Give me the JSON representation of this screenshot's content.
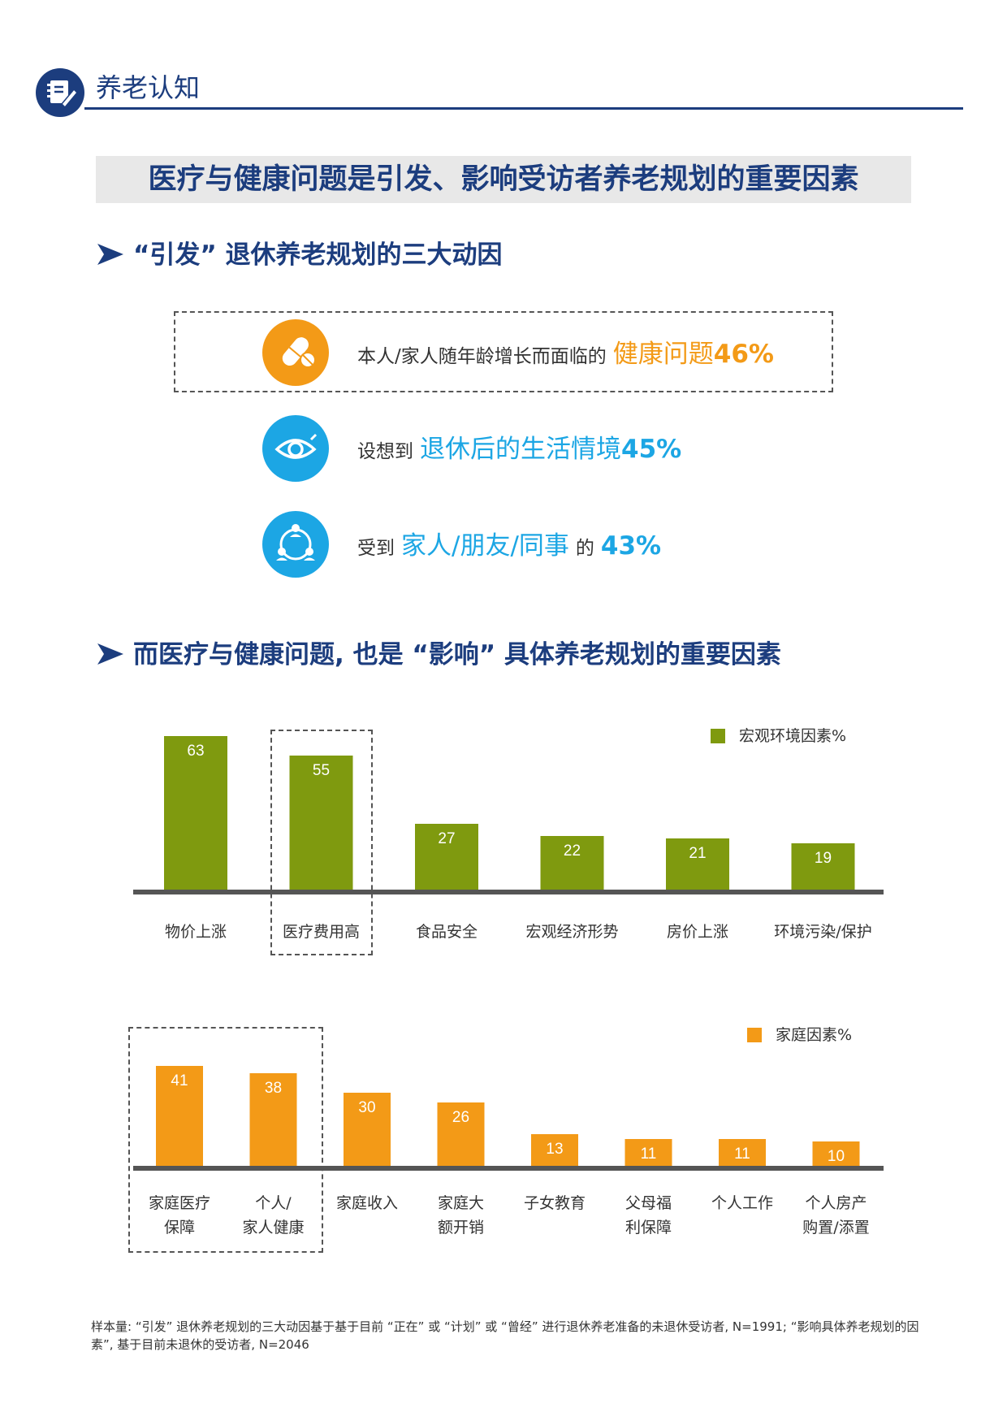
{
  "header": {
    "title": "养老认知",
    "icon": "notebook-pen-icon"
  },
  "banner": {
    "title": "医疗与健康问题是引发、影响受访者养老规划的重要因素"
  },
  "section1": {
    "title": "“引发” 退休养老规划的三大动因",
    "items": [
      {
        "icon": "pills-icon",
        "color": "#f39a17",
        "prefix": "本人/家人随年龄增长而面临的",
        "highlight": "健康问题",
        "percent": "46%"
      },
      {
        "icon": "eye-icon",
        "color": "#1ca6e4",
        "prefix": "设想到",
        "highlight": "退休后的生活情境",
        "percent": "45%"
      },
      {
        "icon": "people-network-icon",
        "color": "#1ca6e4",
        "prefix": "受到",
        "highlight": "家人/朋友/同事",
        "mid": "的",
        "percent": "43%"
      }
    ]
  },
  "section2": {
    "title": "而医疗与健康问题, 也是 “影响” 具体养老规划的重要因素"
  },
  "chart_data": [
    {
      "type": "bar",
      "legend": "宏观环境因素%",
      "legend_position": "top-right",
      "color": "#7f9a0f",
      "categories": [
        "物价上涨",
        "医疗费用高",
        "食品安全",
        "宏观经济形势",
        "房价上涨",
        "环境污染/保护"
      ],
      "values": [
        63,
        55,
        27,
        22,
        21,
        19
      ],
      "highlighted": [
        "医疗费用高"
      ],
      "grid": false
    },
    {
      "type": "bar",
      "legend": "家庭因素%",
      "legend_position": "top-right",
      "color": "#f39a17",
      "categories": [
        "家庭医疗\n保障",
        "个人/\n家人健康",
        "家庭收入",
        "家庭大\n额开销",
        "子女教育",
        "父母福\n利保障",
        "个人工作",
        "个人房产\n购置/添置"
      ],
      "values": [
        41,
        38,
        30,
        26,
        13,
        11,
        11,
        10
      ],
      "highlighted": [
        "家庭医疗\n保障",
        "个人/\n家人健康"
      ],
      "grid": false
    }
  ],
  "footnote": "样本量: “引发” 退休养老规划的三大动因基于基于目前 “正在” 或 “计划” 或 “曾经” 进行退休养老准备的未退休受访者, N=1991; “影响具体养老规划的因素”, 基于目前未退休的受访者, N=2046"
}
